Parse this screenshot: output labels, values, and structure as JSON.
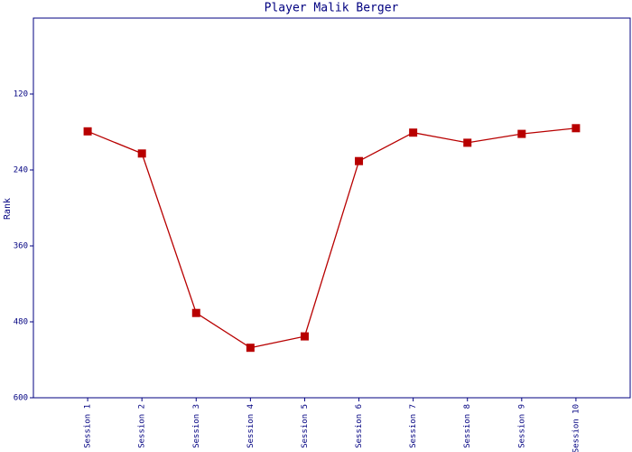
{
  "chart_data": {
    "type": "line",
    "title": "Player Malik Berger",
    "y_label": "Rank",
    "categories": [
      "Session 1",
      "Session 2",
      "Session 3",
      "Session 4",
      "Session 5",
      "Session 6",
      "Session 7",
      "Session 8",
      "Session 9",
      "Session 10"
    ],
    "series": [
      {
        "name": "Rank",
        "color": "#b80000",
        "values": [
          179,
          214,
          466,
          521,
          503,
          226,
          181,
          197,
          183,
          174
        ]
      }
    ],
    "ylim": [
      0,
      600
    ],
    "y_inverted": true,
    "yticks": [
      120,
      240,
      360,
      480,
      600
    ],
    "grid": false
  }
}
